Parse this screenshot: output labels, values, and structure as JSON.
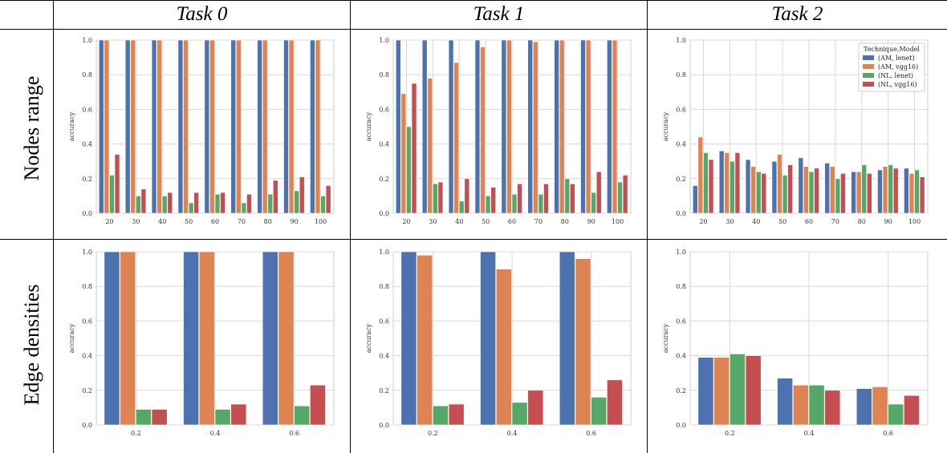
{
  "table": {
    "column_headers": [
      "Task 0",
      "Task 1",
      "Task 2"
    ],
    "row_headers": [
      "Nodes range",
      "Edge densities"
    ]
  },
  "colors": {
    "AM_lenet": "#4c72b0",
    "AM_vgg16": "#dd8452",
    "NL_lenet": "#55a868",
    "NL_vgg16": "#c44e52"
  },
  "chart_data": [
    {
      "id": "nodes-task0",
      "type": "bar",
      "categories": [
        "20",
        "30",
        "40",
        "50",
        "60",
        "70",
        "80",
        "90",
        "100"
      ],
      "ylabel": "accuracy",
      "ylim": [
        0,
        1.0
      ],
      "yticks": [
        "0.0",
        "0.2",
        "0.4",
        "0.6",
        "0.8",
        "1.0"
      ],
      "grid": true,
      "series": [
        {
          "name": "(AM, lenet)",
          "values": [
            1.0,
            1.0,
            1.0,
            1.0,
            1.0,
            1.0,
            1.0,
            1.0,
            1.0
          ]
        },
        {
          "name": "(AM, vgg16)",
          "values": [
            1.0,
            1.0,
            1.0,
            1.0,
            1.0,
            1.0,
            1.0,
            1.0,
            1.0
          ]
        },
        {
          "name": "(NL, lenet)",
          "values": [
            0.22,
            0.1,
            0.1,
            0.06,
            0.11,
            0.06,
            0.11,
            0.13,
            0.1
          ]
        },
        {
          "name": "(NL, vgg16)",
          "values": [
            0.34,
            0.14,
            0.12,
            0.12,
            0.12,
            0.11,
            0.19,
            0.21,
            0.16
          ]
        }
      ]
    },
    {
      "id": "nodes-task1",
      "type": "bar",
      "categories": [
        "20",
        "30",
        "40",
        "50",
        "60",
        "70",
        "80",
        "90",
        "100"
      ],
      "ylabel": "accuracy",
      "ylim": [
        0,
        1.0
      ],
      "yticks": [
        "0.0",
        "0.2",
        "0.4",
        "0.6",
        "0.8",
        "1.0"
      ],
      "grid": true,
      "series": [
        {
          "name": "(AM, lenet)",
          "values": [
            1.0,
            1.0,
            1.0,
            1.0,
            1.0,
            1.0,
            1.0,
            1.0,
            1.0
          ]
        },
        {
          "name": "(AM, vgg16)",
          "values": [
            0.69,
            0.78,
            0.87,
            0.96,
            1.0,
            0.99,
            1.0,
            1.0,
            1.0
          ]
        },
        {
          "name": "(NL, lenet)",
          "values": [
            0.5,
            0.17,
            0.07,
            0.1,
            0.11,
            0.11,
            0.2,
            0.12,
            0.18
          ]
        },
        {
          "name": "(NL, vgg16)",
          "values": [
            0.75,
            0.18,
            0.2,
            0.15,
            0.17,
            0.17,
            0.17,
            0.24,
            0.22
          ]
        }
      ]
    },
    {
      "id": "nodes-task2",
      "type": "bar",
      "categories": [
        "20",
        "30",
        "40",
        "50",
        "60",
        "70",
        "80",
        "90",
        "100"
      ],
      "ylabel": "accuracy",
      "ylim": [
        0,
        1.0
      ],
      "yticks": [
        "0.0",
        "0.2",
        "0.4",
        "0.6",
        "0.8",
        "1.0"
      ],
      "grid": true,
      "legend": {
        "title": "Technique,Model",
        "position": "top-right"
      },
      "series": [
        {
          "name": "(AM, lenet)",
          "values": [
            0.16,
            0.36,
            0.31,
            0.3,
            0.32,
            0.29,
            0.24,
            0.25,
            0.26
          ]
        },
        {
          "name": "(AM, vgg16)",
          "values": [
            0.44,
            0.35,
            0.27,
            0.34,
            0.27,
            0.27,
            0.24,
            0.27,
            0.23
          ]
        },
        {
          "name": "(NL, lenet)",
          "values": [
            0.35,
            0.3,
            0.24,
            0.22,
            0.24,
            0.2,
            0.28,
            0.28,
            0.25
          ]
        },
        {
          "name": "(NL, vgg16)",
          "values": [
            0.31,
            0.35,
            0.23,
            0.28,
            0.26,
            0.23,
            0.23,
            0.26,
            0.21
          ]
        }
      ]
    },
    {
      "id": "edges-task0",
      "type": "bar",
      "categories": [
        "0.2",
        "0.4",
        "0.6"
      ],
      "ylabel": "accuracy",
      "ylim": [
        0,
        1.0
      ],
      "yticks": [
        "0.0",
        "0.2",
        "0.4",
        "0.6",
        "0.8",
        "1.0"
      ],
      "grid": true,
      "series": [
        {
          "name": "(AM, lenet)",
          "values": [
            1.0,
            1.0,
            1.0
          ]
        },
        {
          "name": "(AM, vgg16)",
          "values": [
            1.0,
            1.0,
            1.0
          ]
        },
        {
          "name": "(NL, lenet)",
          "values": [
            0.09,
            0.09,
            0.11
          ]
        },
        {
          "name": "(NL, vgg16)",
          "values": [
            0.09,
            0.12,
            0.23
          ]
        }
      ]
    },
    {
      "id": "edges-task1",
      "type": "bar",
      "categories": [
        "0.2",
        "0.4",
        "0.6"
      ],
      "ylabel": "accuracy",
      "ylim": [
        0,
        1.0
      ],
      "yticks": [
        "0.0",
        "0.2",
        "0.4",
        "0.6",
        "0.8",
        "1.0"
      ],
      "grid": true,
      "series": [
        {
          "name": "(AM, lenet)",
          "values": [
            1.0,
            1.0,
            1.0
          ]
        },
        {
          "name": "(AM, vgg16)",
          "values": [
            0.98,
            0.9,
            0.96
          ]
        },
        {
          "name": "(NL, lenet)",
          "values": [
            0.11,
            0.13,
            0.16
          ]
        },
        {
          "name": "(NL, vgg16)",
          "values": [
            0.12,
            0.2,
            0.26
          ]
        }
      ]
    },
    {
      "id": "edges-task2",
      "type": "bar",
      "categories": [
        "0.2",
        "0.4",
        "0.6"
      ],
      "ylabel": "accuracy",
      "ylim": [
        0,
        1.0
      ],
      "yticks": [
        "0.0",
        "0.2",
        "0.4",
        "0.6",
        "0.8",
        "1.0"
      ],
      "grid": true,
      "series": [
        {
          "name": "(AM, lenet)",
          "values": [
            0.39,
            0.27,
            0.21
          ]
        },
        {
          "name": "(AM, vgg16)",
          "values": [
            0.39,
            0.23,
            0.22
          ]
        },
        {
          "name": "(NL, lenet)",
          "values": [
            0.41,
            0.23,
            0.12
          ]
        },
        {
          "name": "(NL, vgg16)",
          "values": [
            0.4,
            0.2,
            0.17
          ]
        }
      ]
    }
  ]
}
